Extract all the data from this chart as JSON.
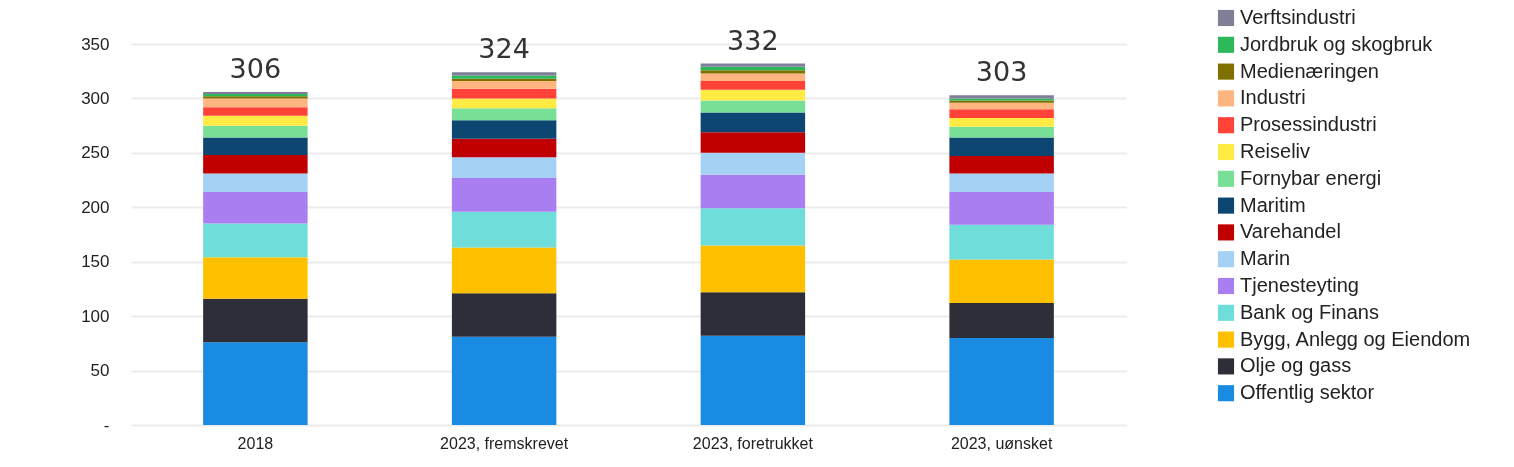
{
  "chart_data": {
    "type": "bar",
    "stacked": true,
    "categories": [
      "2018",
      "2023, fremskrevet",
      "2023, foretrukket",
      "2023, uønsket"
    ],
    "series": [
      {
        "name": "Offentlig sektor",
        "color": "#1a8be3",
        "values": [
          76,
          81,
          82,
          80
        ]
      },
      {
        "name": "Olje og gass",
        "color": "#2e2e38",
        "values": [
          40,
          40,
          40,
          32
        ]
      },
      {
        "name": "Bygg, Anlegg og Eiendom",
        "color": "#ffc000",
        "values": [
          38,
          42,
          43,
          40
        ]
      },
      {
        "name": "Bank og Finans",
        "color": "#6fdedb",
        "values": [
          31,
          33,
          34,
          32
        ]
      },
      {
        "name": "Tjenesteyting",
        "color": "#a87ef0",
        "values": [
          29,
          31,
          31,
          30
        ]
      },
      {
        "name": "Marin",
        "color": "#a5d1f5",
        "values": [
          17,
          19,
          20,
          17
        ]
      },
      {
        "name": "Varehandel",
        "color": "#c00000",
        "values": [
          17,
          17,
          19,
          16
        ]
      },
      {
        "name": "Maritim",
        "color": "#0e4672",
        "values": [
          16,
          17,
          18,
          17
        ]
      },
      {
        "name": "Fornybar energi",
        "color": "#78e096",
        "values": [
          11,
          11,
          11,
          10
        ]
      },
      {
        "name": "Reiseliv",
        "color": "#ffeb44",
        "values": [
          9,
          9,
          10,
          8
        ]
      },
      {
        "name": "Prosessindustri",
        "color": "#ff4338",
        "values": [
          8,
          9,
          8,
          8
        ]
      },
      {
        "name": "Industri",
        "color": "#ffb580",
        "values": [
          8,
          7,
          7,
          6
        ]
      },
      {
        "name": "Medienæringen",
        "color": "#7f7000",
        "values": [
          2,
          2,
          3,
          2
        ]
      },
      {
        "name": "Jordbruk og skogbruk",
        "color": "#2db85a",
        "values": [
          2,
          3,
          3,
          2
        ]
      },
      {
        "name": "Verftsindustri",
        "color": "#7f7f99",
        "values": [
          2,
          3,
          3,
          3
        ]
      }
    ],
    "totals": [
      "306",
      "324",
      "332",
      "303"
    ],
    "ylim": [
      0,
      350
    ],
    "yticks": [
      {
        "value": 0,
        "label": "-"
      },
      50,
      100,
      150,
      200,
      250,
      300,
      350
    ],
    "grid": "y",
    "legend": "right"
  }
}
